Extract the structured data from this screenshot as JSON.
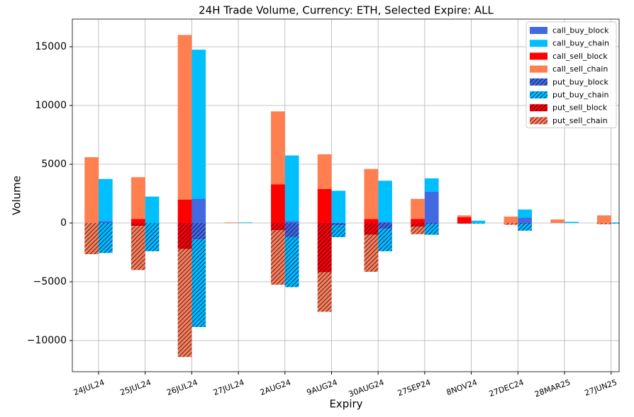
{
  "chart_data": {
    "type": "bar",
    "title": "24H Trade Volume, Currency: ETH, Selected Expire: ALL",
    "x_label": "Expiry",
    "y_label": "Volume",
    "categories": [
      "24JUL24",
      "25JUL24",
      "26JUL24",
      "27JUL24",
      "2AUG24",
      "9AUG24",
      "30AUG24",
      "27SEP24",
      "8NOV24",
      "27DEC24",
      "28MAR25",
      "27JUN25"
    ],
    "series": [
      {
        "name": "call_buy_block",
        "color": "#4169e1",
        "values": [
          150,
          0,
          2050,
          0,
          150,
          0,
          100,
          2650,
          0,
          450,
          0,
          0
        ]
      },
      {
        "name": "call_buy_chain",
        "color": "#00bfff",
        "values": [
          3600,
          2250,
          12700,
          50,
          5600,
          2750,
          3500,
          1150,
          200,
          700,
          100,
          50
        ]
      },
      {
        "name": "call_sell_block",
        "color": "#ff0000",
        "values": [
          0,
          350,
          2000,
          0,
          3300,
          2900,
          350,
          350,
          500,
          0,
          0,
          0
        ]
      },
      {
        "name": "call_sell_chain",
        "color": "#ff7f50",
        "values": [
          5600,
          3550,
          14000,
          50,
          6200,
          2950,
          4250,
          1700,
          150,
          550,
          300,
          650
        ]
      },
      {
        "name": "put_buy_block",
        "color": "#4169e1",
        "hatch": "///",
        "values": [
          0,
          0,
          -1400,
          0,
          -1200,
          -200,
          -500,
          -100,
          0,
          -100,
          0,
          0
        ]
      },
      {
        "name": "put_buy_chain",
        "color": "#00bfff",
        "hatch": "///",
        "values": [
          -2550,
          -2400,
          -7450,
          0,
          -4250,
          -1000,
          -1900,
          -900,
          -50,
          -550,
          0,
          -50
        ]
      },
      {
        "name": "put_sell_block",
        "color": "#ff0000",
        "hatch": "///",
        "values": [
          0,
          -250,
          -2200,
          0,
          -600,
          -4200,
          -1000,
          -300,
          -50,
          0,
          0,
          0
        ]
      },
      {
        "name": "put_sell_chain",
        "color": "#ff7f50",
        "hatch": "///",
        "values": [
          -2650,
          -3750,
          -9200,
          0,
          -4650,
          -3350,
          -3150,
          -650,
          0,
          -150,
          0,
          -100
        ]
      }
    ],
    "ylim": [
      -12650,
      17350
    ],
    "yticks": [
      {
        "value": -10000,
        "label": "−10000"
      },
      {
        "value": -5000,
        "label": "−5000"
      },
      0,
      5000,
      10000,
      15000
    ],
    "grid": true,
    "legend": "upper right"
  }
}
